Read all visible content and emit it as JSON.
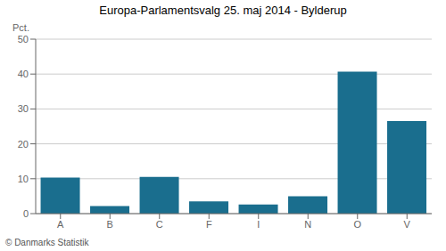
{
  "chart_data": {
    "type": "bar",
    "title": "Europa-Parlamentsvalg 25. maj 2014 - Bylderup",
    "categories": [
      "A",
      "B",
      "C",
      "F",
      "I",
      "N",
      "O",
      "V"
    ],
    "values": [
      10.3,
      2.2,
      10.5,
      3.5,
      2.6,
      5.0,
      40.7,
      26.5
    ],
    "color": "#1a6e8e",
    "ylabel": "Pct.",
    "ylim": [
      0,
      50
    ],
    "yticks": [
      0,
      10,
      20,
      30,
      40,
      50
    ],
    "grid": true,
    "annotations": [
      "© Danmarks Statistik"
    ]
  }
}
